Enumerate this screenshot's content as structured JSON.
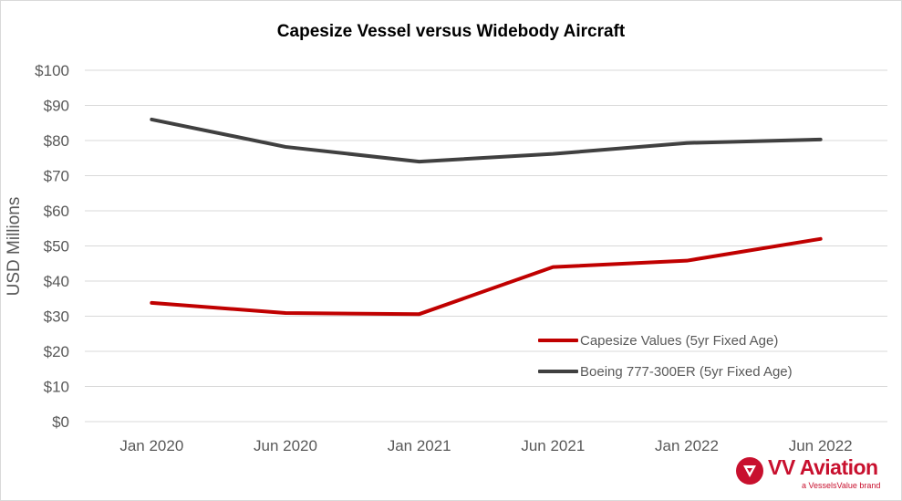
{
  "chart_data": {
    "type": "line",
    "title": "Capesize Vessel versus Widebody Aircraft",
    "ylabel": "USD Millions",
    "xlabel": "",
    "categories": [
      "Jan 2020",
      "Jun 2020",
      "Jan 2021",
      "Jun 2021",
      "Jan 2022",
      "Jun 2022"
    ],
    "ylim": [
      0,
      100
    ],
    "yticks": [
      "$0",
      "$10",
      "$20",
      "$30",
      "$40",
      "$50",
      "$60",
      "$70",
      "$80",
      "$90",
      "$100"
    ],
    "grid": true,
    "legend_position": "bottom-right",
    "series": [
      {
        "name": "Capesize Values (5yr Fixed Age)",
        "color": "#c00000",
        "values": [
          33.8,
          30.9,
          30.6,
          44.0,
          45.8,
          52.0
        ]
      },
      {
        "name": "Boeing 777-300ER (5yr Fixed Age)",
        "color": "#404040",
        "values": [
          86.0,
          78.2,
          74.0,
          76.2,
          79.3,
          80.3
        ]
      }
    ]
  },
  "branding": {
    "name": "VV Aviation",
    "tagline": "a VesselsValue brand",
    "logo_icon": "triangle-logo-icon",
    "color": "#c8102e"
  }
}
